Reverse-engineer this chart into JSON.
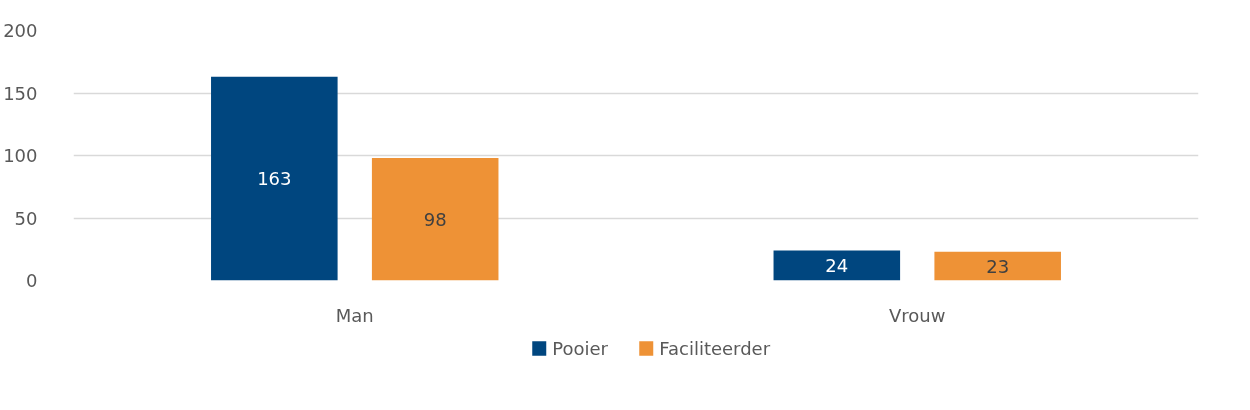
{
  "chart_data": {
    "type": "bar",
    "categories": [
      "Man",
      "Vrouw"
    ],
    "series": [
      {
        "name": "Pooier",
        "color": "#00467f",
        "values": [
          163,
          24
        ]
      },
      {
        "name": "Faciliteerder",
        "color": "#ee9236",
        "values": [
          98,
          23
        ]
      }
    ],
    "ylim": [
      0,
      200
    ],
    "yticks": [
      0,
      50,
      100,
      150,
      200
    ],
    "grid": "y",
    "legend": "bottom",
    "data_labels": true
  }
}
